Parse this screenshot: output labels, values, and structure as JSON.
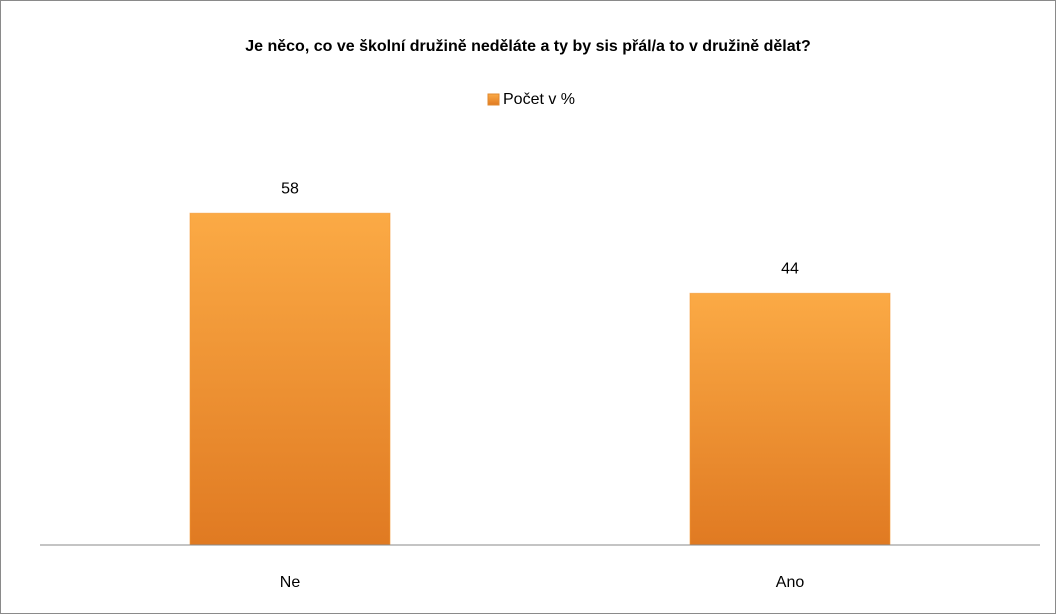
{
  "chart_data": {
    "type": "bar",
    "title": "Je něco, co ve školní družině neděláte a ty by sis přál/a to v družině dělat?",
    "categories": [
      "Ne",
      "Ano"
    ],
    "series": [
      {
        "name": "Počet v %",
        "color": "#f39a33",
        "values": [
          58,
          44
        ]
      }
    ],
    "legend": "top"
  }
}
